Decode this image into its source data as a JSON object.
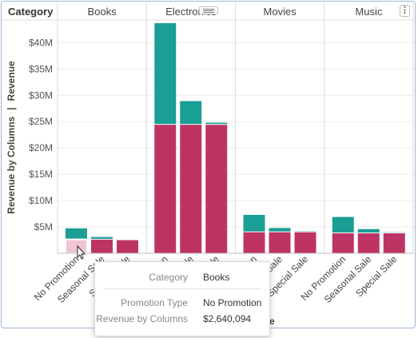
{
  "header": {
    "category_label": "Category",
    "panels": [
      "Books",
      "Electronics",
      "Movies",
      "Music"
    ]
  },
  "y_axis": {
    "title_left": "Revenue by Columns",
    "title_sep": "|",
    "title_right": "Revenue",
    "ticks": [
      "$5M",
      "$10M",
      "$15M",
      "$20M",
      "$25M",
      "$30M",
      "$35M",
      "$40M"
    ]
  },
  "x_axis": {
    "title_fragment": "e"
  },
  "chart_data": {
    "type": "bar",
    "stacked": true,
    "facet_by": "Category",
    "facets": [
      "Books",
      "Electronics",
      "Movies",
      "Music"
    ],
    "categories": [
      "No Promotion",
      "Seasonal Sale",
      "Special Sale"
    ],
    "series": [
      {
        "name": "Revenue by Columns",
        "color": "#bd3464",
        "values": {
          "Books": [
            2.64,
            2.6,
            2.5
          ],
          "Electronics": [
            24.4,
            24.4,
            24.4
          ],
          "Movies": [
            4.0,
            4.0,
            4.0
          ],
          "Music": [
            3.8,
            3.8,
            3.8
          ]
        }
      },
      {
        "name": "Revenue",
        "color": "#1a9e96",
        "values": {
          "Books": [
            2.1,
            0.5,
            0.1
          ],
          "Electronics": [
            19.3,
            4.5,
            0.4
          ],
          "Movies": [
            3.3,
            0.8,
            0.2
          ],
          "Music": [
            3.1,
            0.8,
            0.2
          ]
        }
      }
    ],
    "ylim": [
      0,
      44
    ],
    "ylabel": "Revenue by Columns | Revenue",
    "highlighted": {
      "facet": "Books",
      "category": "No Promotion"
    },
    "grid": true
  },
  "tooltip": {
    "rows": [
      {
        "label": "Category",
        "value": "Books"
      },
      {
        "label": "Promotion Type",
        "value": "No Promotion"
      },
      {
        "label": "Revenue by Columns",
        "value": "$2,640,094"
      }
    ]
  }
}
